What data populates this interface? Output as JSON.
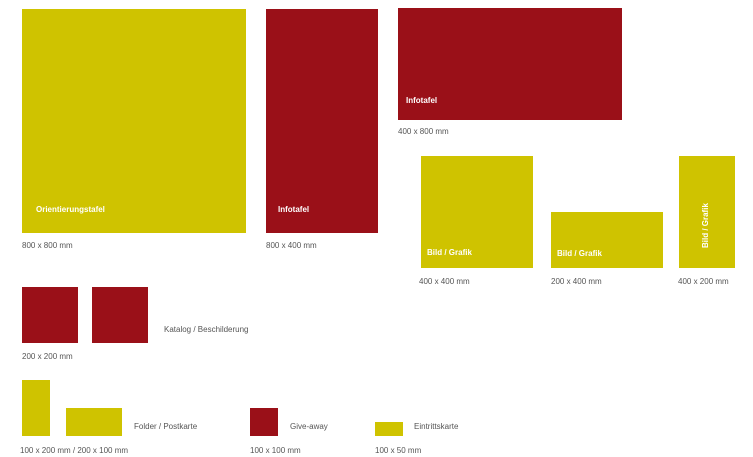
{
  "colors": {
    "yellow": "#cfc300",
    "red": "#9a1018",
    "label_gray": "#555555"
  },
  "blocks": {
    "orientierungstafel": {
      "label": "Orientierungstafel",
      "size": "800 x 800 mm"
    },
    "infotafel_tall": {
      "label": "Infotafel",
      "size": "800 x 400 mm"
    },
    "infotafel_wide": {
      "label": "Infotafel",
      "size": "400 x 800 mm"
    },
    "bild_square": {
      "label": "Bild / Grafik",
      "size": "400 x 400 mm"
    },
    "bild_wide": {
      "label": "Bild / Grafik",
      "size": "200 x 400 mm"
    },
    "bild_tall": {
      "label": "Bild / Grafik",
      "size": "400 x 200 mm"
    },
    "katalog": {
      "label": "Katalog / Beschilderung",
      "size": "200 x 200 mm"
    },
    "folder": {
      "label": "Folder / Postkarte",
      "size": "100 x 200 mm / 200 x 100 mm"
    },
    "giveaway": {
      "label": "Give-away",
      "size": "100 x 100 mm"
    },
    "eintrittskarte": {
      "label": "Eintrittskarte",
      "size": "100 x 50 mm"
    }
  }
}
